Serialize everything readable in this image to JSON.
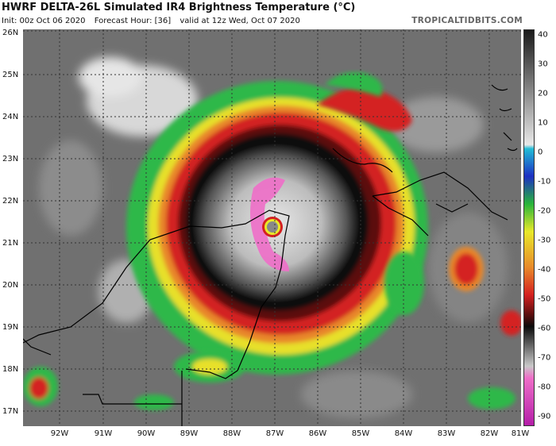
{
  "header": {
    "title": "HWRF DELTA-26L Simulated IR4 Brightness Temperature (°C)",
    "init": "Init: 00z Oct 06 2020",
    "forecast_hour": "Forecast Hour: [36]",
    "valid": "valid at 12z Wed, Oct 07 2020",
    "brand": "TROPICALTIDBITS.COM"
  },
  "map": {
    "lat_labels": [
      "26N",
      "25N",
      "24N",
      "23N",
      "22N",
      "21N",
      "20N",
      "19N",
      "18N",
      "17N"
    ],
    "lon_labels": [
      "92W",
      "91W",
      "90W",
      "89W",
      "88W",
      "87W",
      "86W",
      "85W",
      "84W",
      "83W",
      "82W",
      "81W"
    ]
  },
  "colorbar": {
    "labels": [
      "40",
      "30",
      "20",
      "10",
      "0",
      "-10",
      "-20",
      "-30",
      "-40",
      "-50",
      "-60",
      "-70",
      "-80",
      "-90"
    ],
    "colors": {
      "warm": "#e8e8e8",
      "cold": "#1a1a1a",
      "cyan": "#22bcd6",
      "blue": "#1d2fc2",
      "green": "#29b53a",
      "yellow": "#e8e82a",
      "orange": "#e88a2a",
      "red": "#d42020",
      "dark_red": "#5a0e0e",
      "black": "#0a0a0a",
      "gray": "#c8c8c8",
      "pink": "#ee6ec8",
      "magenta": "#b41ea8"
    }
  }
}
